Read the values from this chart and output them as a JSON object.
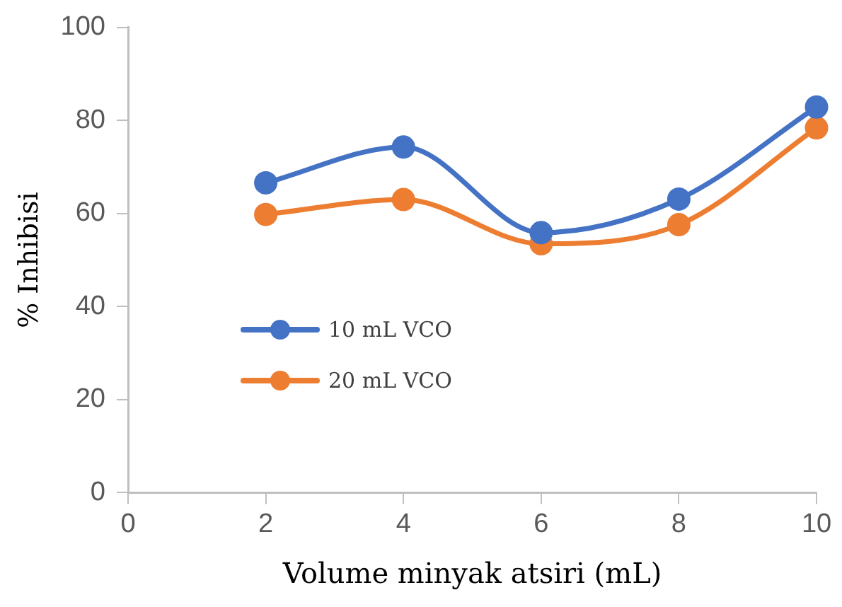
{
  "chart_data": {
    "type": "line",
    "xlabel": "Volume minyak atsiri (mL)",
    "ylabel": "% Inhibisi",
    "x": [
      2,
      4,
      6,
      8,
      10
    ],
    "series": [
      {
        "name": "10 mL VCO",
        "color": "#4472c4",
        "values": [
          66.6,
          74.3,
          55.9,
          63.1,
          82.9
        ]
      },
      {
        "name": "20 mL VCO",
        "color": "#ed7d31",
        "values": [
          59.8,
          63.0,
          53.5,
          57.6,
          78.4
        ]
      }
    ],
    "xlim": [
      0,
      10
    ],
    "xticks": [
      0,
      2,
      4,
      6,
      8,
      10
    ],
    "ylim": [
      0,
      100
    ],
    "yticks": [
      0,
      20,
      40,
      60,
      80,
      100
    ],
    "grid": false,
    "legend": "bottom left",
    "marker": "circle",
    "line_style": "solid"
  }
}
